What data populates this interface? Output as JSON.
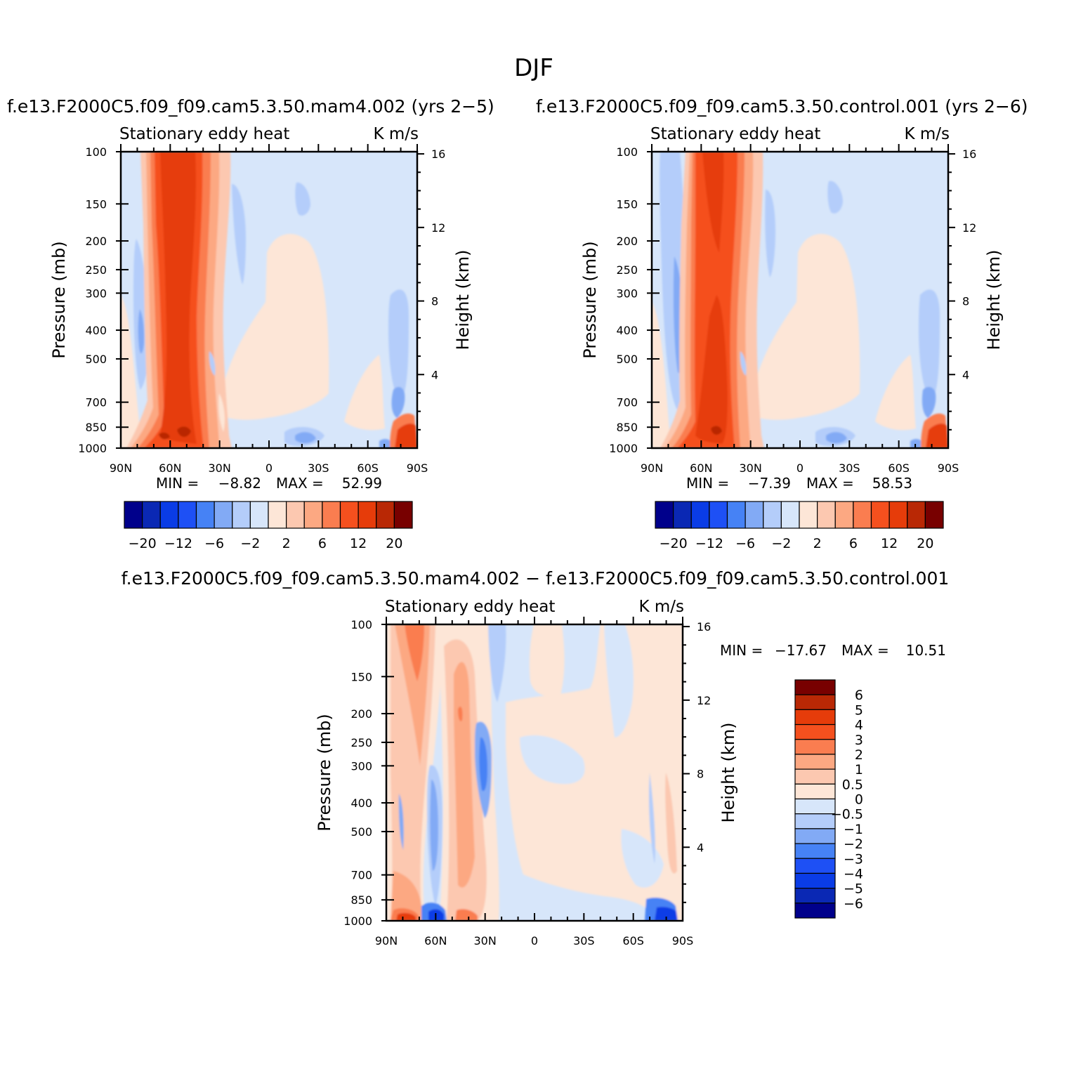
{
  "figure": {
    "title": "DJF",
    "pair_title_left": "f.e13.F2000C5.f09_f09.cam5.3.50.mam4.002 (yrs 2−5)",
    "pair_title_right": "f.e13.F2000C5.f09_f09.cam5.3.50.control.001 (yrs 2−6)",
    "diff_title": "f.e13.F2000C5.f09_f09.cam5.3.50.mam4.002 − f.e13.F2000C5.f09_f09.cam5.3.50.control.001"
  },
  "chart_data": [
    {
      "type": "contour",
      "id": "panel-mam4",
      "variable": "Stationary eddy heat",
      "units": "K m/s",
      "xlabel": "",
      "ylabel": "Pressure (mb)",
      "y2label": "Height (km)",
      "x_ticks": [
        "90N",
        "60N",
        "30N",
        "0",
        "30S",
        "60S",
        "90S"
      ],
      "y_ticks": [
        "100",
        "150",
        "200",
        "250",
        "300",
        "400",
        "500",
        "700",
        "850",
        "1000"
      ],
      "y_tick_values": [
        100,
        150,
        200,
        250,
        300,
        400,
        500,
        700,
        850,
        1000
      ],
      "y2_ticks": [
        "16",
        "12",
        "8",
        "4"
      ],
      "y2_tick_values": [
        16,
        12,
        8,
        4
      ],
      "min_label": "MIN =",
      "min_value": "−8.82",
      "max_label": "MAX =",
      "max_value": "52.99",
      "stats": "MIN =   −8.82   MAX =   52.99",
      "min": -8.82,
      "max": 52.99,
      "colorbar_levels": [
        -20,
        -16,
        -12,
        -8,
        -6,
        -4,
        -2,
        0,
        2,
        4,
        6,
        8,
        12,
        16,
        20
      ],
      "colorbar_labels": [
        "−20",
        "−12",
        "−6",
        "−2",
        "2",
        "6",
        "12",
        "20"
      ]
    },
    {
      "type": "contour",
      "id": "panel-control",
      "variable": "Stationary eddy heat",
      "units": "K m/s",
      "xlabel": "",
      "ylabel": "Pressure (mb)",
      "y2label": "Height (km)",
      "x_ticks": [
        "90N",
        "60N",
        "30N",
        "0",
        "30S",
        "60S",
        "90S"
      ],
      "y_ticks": [
        "100",
        "150",
        "200",
        "250",
        "300",
        "400",
        "500",
        "700",
        "850",
        "1000"
      ],
      "y_tick_values": [
        100,
        150,
        200,
        250,
        300,
        400,
        500,
        700,
        850,
        1000
      ],
      "y2_ticks": [
        "16",
        "12",
        "8",
        "4"
      ],
      "y2_tick_values": [
        16,
        12,
        8,
        4
      ],
      "min_label": "MIN =",
      "min_value": "−7.39",
      "max_label": "MAX =",
      "max_value": "58.53",
      "stats": "MIN =   −7.39   MAX =   58.53",
      "min": -7.39,
      "max": 58.53,
      "colorbar_levels": [
        -20,
        -16,
        -12,
        -8,
        -6,
        -4,
        -2,
        0,
        2,
        4,
        6,
        8,
        12,
        16,
        20
      ],
      "colorbar_labels": [
        "−20",
        "−12",
        "−6",
        "−2",
        "2",
        "6",
        "12",
        "20"
      ]
    },
    {
      "type": "contour",
      "id": "panel-difference",
      "variable": "Stationary eddy heat",
      "units": "K m/s",
      "xlabel": "",
      "ylabel": "Pressure (mb)",
      "y2label": "Height (km)",
      "x_ticks": [
        "90N",
        "60N",
        "30N",
        "0",
        "30S",
        "60S",
        "90S"
      ],
      "y_ticks": [
        "100",
        "150",
        "200",
        "250",
        "300",
        "400",
        "500",
        "700",
        "850",
        "1000"
      ],
      "y_tick_values": [
        100,
        150,
        200,
        250,
        300,
        400,
        500,
        700,
        850,
        1000
      ],
      "y2_ticks": [
        "16",
        "12",
        "8",
        "4"
      ],
      "y2_tick_values": [
        16,
        12,
        8,
        4
      ],
      "min_label": "MIN =",
      "min_value": "−17.67",
      "max_label": "MAX =",
      "max_value": "10.51",
      "stats": "MIN = −17.67   MAX =   10.51",
      "min": -17.67,
      "max": 10.51,
      "colorbar_levels": [
        6,
        5,
        4,
        3,
        2,
        1,
        0.5,
        0,
        -0.5,
        -1,
        -2,
        -3,
        -4,
        -5,
        -6
      ],
      "colorbar_labels": [
        "6",
        "5",
        "4",
        "3",
        "2",
        "1",
        "0.5",
        "0",
        "−0.5",
        "−1",
        "−2",
        "−3",
        "−4",
        "−5",
        "−6"
      ]
    }
  ],
  "palette": [
    "#00008b",
    "#0a28b4",
    "#0a3ce6",
    "#1e50f5",
    "#4682f5",
    "#82aaf5",
    "#b4cdfa",
    "#d7e6fa",
    "#fde6d7",
    "#fcc8b0",
    "#fca882",
    "#fa7d50",
    "#f5501e",
    "#e63c0a",
    "#b92805",
    "#780000"
  ],
  "background_color": "#d7e6fa"
}
